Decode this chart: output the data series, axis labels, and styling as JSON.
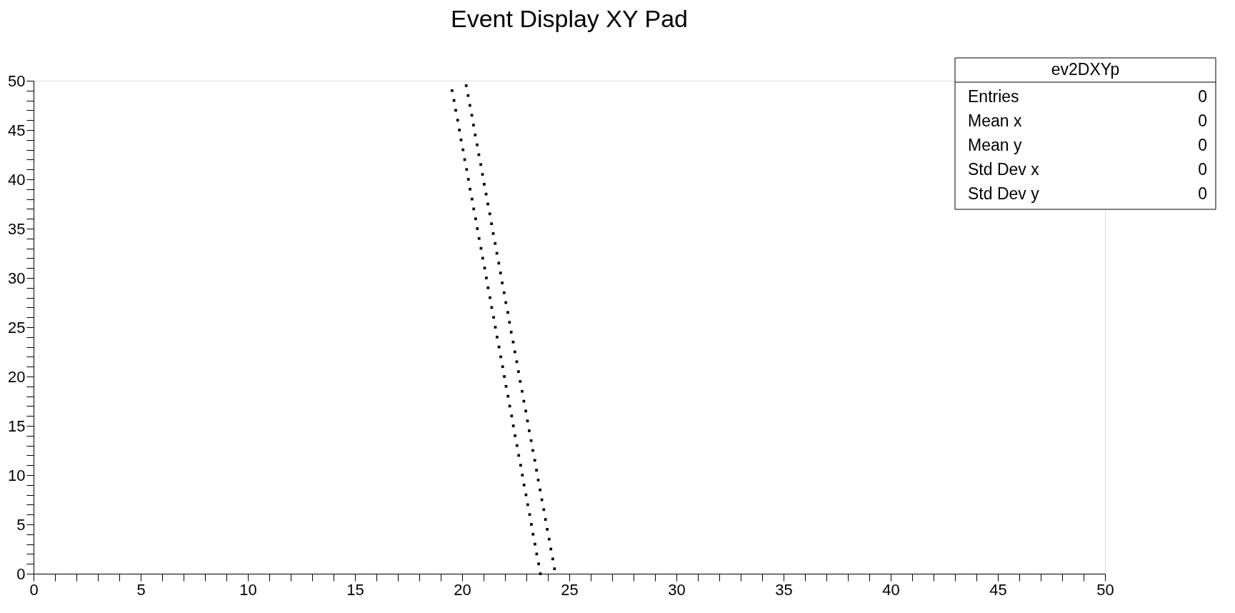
{
  "chart_data": {
    "type": "scatter",
    "title": "Event Display XY Pad",
    "annotations": [
      "ev2DXYp",
      "Entries",
      "0",
      "Mean x",
      "0",
      "Mean y",
      "0",
      "Std Dev x",
      "0",
      "Std Dev y",
      "0"
    ],
    "series": [
      {
        "color": "#000000",
        "x": [
          23.65,
          23.57,
          23.48,
          23.4,
          23.31,
          23.23,
          23.15,
          23.06,
          22.98,
          22.89,
          22.81,
          22.73,
          22.64,
          22.56,
          22.47,
          22.39,
          22.31,
          22.22,
          22.14,
          22.05,
          21.97,
          21.89,
          21.8,
          21.72,
          21.63,
          21.55,
          21.47,
          21.38,
          21.3,
          21.21,
          21.13,
          21.05,
          20.96,
          20.88,
          20.79,
          20.71,
          20.63,
          20.54,
          20.46,
          20.37,
          20.29,
          20.21,
          20.12,
          20.04,
          19.95,
          19.87,
          19.79,
          19.7,
          19.62,
          19.53,
          24.31,
          24.23,
          24.14,
          24.06,
          23.97,
          23.89,
          23.81,
          23.72,
          23.64,
          23.55,
          23.47,
          23.39,
          23.3,
          23.22,
          23.13,
          23.05,
          22.97,
          22.88,
          22.8,
          22.71,
          22.63,
          22.55,
          22.46,
          22.38,
          22.29,
          22.21,
          22.13,
          22.04,
          21.96,
          21.87,
          21.79,
          21.71,
          21.62,
          21.54,
          21.45,
          21.37,
          21.29,
          21.2,
          21.12,
          21.03,
          20.95,
          20.87,
          20.78,
          20.7,
          20.61,
          20.53,
          20.45,
          20.36,
          20.28,
          20.19
        ],
        "values": [
          0,
          1,
          2,
          3,
          4,
          5,
          6,
          7,
          8,
          9,
          10,
          11,
          12,
          13,
          14,
          15,
          16,
          17,
          18,
          19,
          20,
          21,
          22,
          23,
          24,
          25,
          26,
          27,
          28,
          29,
          30,
          31,
          32,
          33,
          34,
          35,
          36,
          37,
          38,
          39,
          40,
          41,
          42,
          43,
          44,
          45,
          46,
          47,
          48,
          49,
          0.5,
          1.5,
          2.5,
          3.5,
          4.5,
          5.5,
          6.5,
          7.5,
          8.5,
          9.5,
          10.5,
          11.5,
          12.5,
          13.5,
          14.5,
          15.5,
          16.5,
          17.5,
          18.5,
          19.5,
          20.5,
          21.5,
          22.5,
          23.5,
          24.5,
          25.5,
          26.5,
          27.5,
          28.5,
          29.5,
          30.5,
          31.5,
          32.5,
          33.5,
          34.5,
          35.5,
          36.5,
          37.5,
          38.5,
          39.5,
          40.5,
          41.5,
          42.5,
          43.5,
          44.5,
          45.5,
          46.5,
          47.5,
          48.5,
          49.5
        ]
      }
    ],
    "marker": "square",
    "xlim": [
      0,
      50
    ],
    "ylim": [
      0,
      50
    ],
    "xticks": [
      0,
      {
        "value": 1,
        "label": null
      },
      {
        "value": 2,
        "label": null
      },
      {
        "value": 3,
        "label": null
      },
      {
        "value": 4,
        "label": null
      },
      5,
      {
        "value": 6,
        "label": null
      },
      {
        "value": 7,
        "label": null
      },
      {
        "value": 8,
        "label": null
      },
      {
        "value": 9,
        "label": null
      },
      10,
      {
        "value": 11,
        "label": null
      },
      {
        "value": 12,
        "label": null
      },
      {
        "value": 13,
        "label": null
      },
      {
        "value": 14,
        "label": null
      },
      15,
      {
        "value": 16,
        "label": null
      },
      {
        "value": 17,
        "label": null
      },
      {
        "value": 18,
        "label": null
      },
      {
        "value": 19,
        "label": null
      },
      20,
      {
        "value": 21,
        "label": null
      },
      {
        "value": 22,
        "label": null
      },
      {
        "value": 23,
        "label": null
      },
      {
        "value": 24,
        "label": null
      },
      25,
      {
        "value": 26,
        "label": null
      },
      {
        "value": 27,
        "label": null
      },
      {
        "value": 28,
        "label": null
      },
      {
        "value": 29,
        "label": null
      },
      30,
      {
        "value": 31,
        "label": null
      },
      {
        "value": 32,
        "label": null
      },
      {
        "value": 33,
        "label": null
      },
      {
        "value": 34,
        "label": null
      },
      35,
      {
        "value": 36,
        "label": null
      },
      {
        "value": 37,
        "label": null
      },
      {
        "value": 38,
        "label": null
      },
      {
        "value": 39,
        "label": null
      },
      40,
      {
        "value": 41,
        "label": null
      },
      {
        "value": 42,
        "label": null
      },
      {
        "value": 43,
        "label": null
      },
      {
        "value": 44,
        "label": null
      },
      45,
      {
        "value": 46,
        "label": null
      },
      {
        "value": 47,
        "label": null
      },
      {
        "value": 48,
        "label": null
      },
      {
        "value": 49,
        "label": null
      },
      50
    ],
    "yticks": [
      0,
      {
        "value": 1,
        "label": null
      },
      {
        "value": 2,
        "label": null
      },
      {
        "value": 3,
        "label": null
      },
      {
        "value": 4,
        "label": null
      },
      5,
      {
        "value": 6,
        "label": null
      },
      {
        "value": 7,
        "label": null
      },
      {
        "value": 8,
        "label": null
      },
      {
        "value": 9,
        "label": null
      },
      10,
      {
        "value": 11,
        "label": null
      },
      {
        "value": 12,
        "label": null
      },
      {
        "value": 13,
        "label": null
      },
      {
        "value": 14,
        "label": null
      },
      15,
      {
        "value": 16,
        "label": null
      },
      {
        "value": 17,
        "label": null
      },
      {
        "value": 18,
        "label": null
      },
      {
        "value": 19,
        "label": null
      },
      20,
      {
        "value": 21,
        "label": null
      },
      {
        "value": 22,
        "label": null
      },
      {
        "value": 23,
        "label": null
      },
      {
        "value": 24,
        "label": null
      },
      25,
      {
        "value": 26,
        "label": null
      },
      {
        "value": 27,
        "label": null
      },
      {
        "value": 28,
        "label": null
      },
      {
        "value": 29,
        "label": null
      },
      30,
      {
        "value": 31,
        "label": null
      },
      {
        "value": 32,
        "label": null
      },
      {
        "value": 33,
        "label": null
      },
      {
        "value": 34,
        "label": null
      },
      35,
      {
        "value": 36,
        "label": null
      },
      {
        "value": 37,
        "label": null
      },
      {
        "value": 38,
        "label": null
      },
      {
        "value": 39,
        "label": null
      },
      40,
      {
        "value": 41,
        "label": null
      },
      {
        "value": 42,
        "label": null
      },
      {
        "value": 43,
        "label": null
      },
      {
        "value": 44,
        "label": null
      },
      45,
      {
        "value": 46,
        "label": null
      },
      {
        "value": 47,
        "label": null
      },
      {
        "value": 48,
        "label": null
      },
      {
        "value": 49,
        "label": null
      },
      50
    ],
    "grid": false,
    "legend": false
  }
}
